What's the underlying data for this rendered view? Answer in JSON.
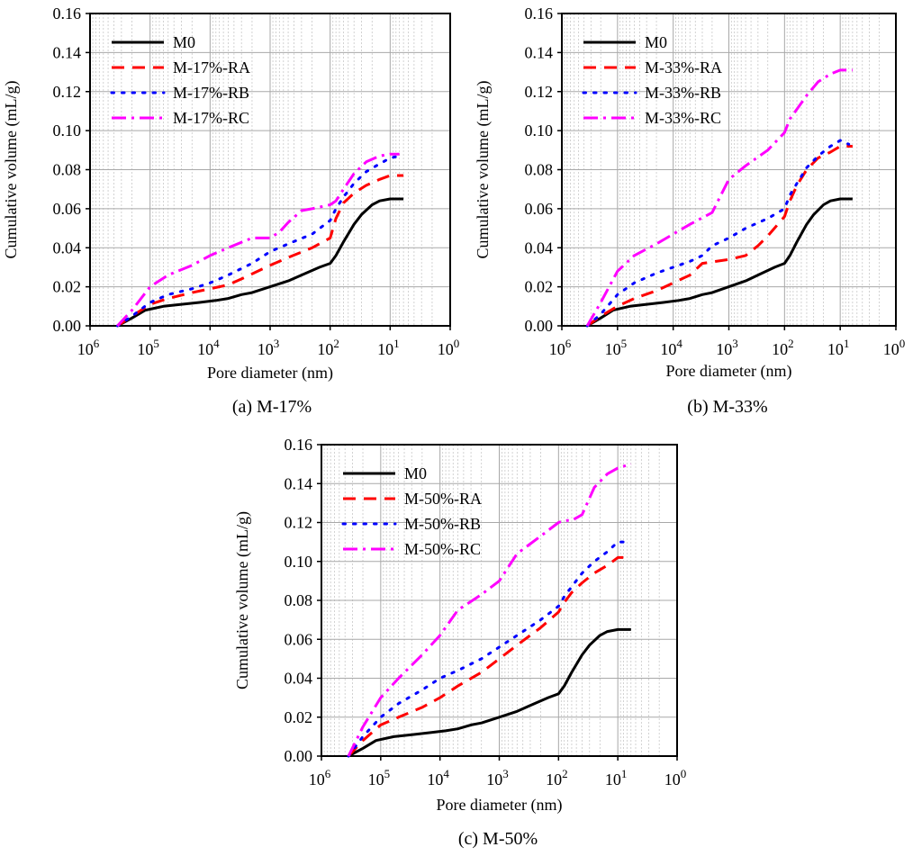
{
  "figure": {
    "panels_count": 3
  },
  "chart_data": [
    {
      "type": "line",
      "caption": "(a) M-17%",
      "xlabel": "Pore diameter (nm)",
      "ylabel": "Cumulative volume (mL/g)",
      "x_scale": "log",
      "x_reversed": true,
      "xlim": [
        1000000,
        1
      ],
      "ylim": [
        0,
        0.16
      ],
      "x_ticks": [
        {
          "base": "10",
          "exp": "6"
        },
        {
          "base": "10",
          "exp": "5"
        },
        {
          "base": "10",
          "exp": "4"
        },
        {
          "base": "10",
          "exp": "3"
        },
        {
          "base": "10",
          "exp": "2"
        },
        {
          "base": "10",
          "exp": "1"
        },
        {
          "base": "10",
          "exp": "0"
        }
      ],
      "y_ticks": [
        "0.00",
        "0.02",
        "0.04",
        "0.06",
        "0.08",
        "0.10",
        "0.12",
        "0.14",
        "0.16"
      ],
      "grid": true,
      "legend_position": "top-left",
      "series": [
        {
          "name": "M0",
          "color": "#000000",
          "style": "solid",
          "x": [
            350000,
            200000,
            120000,
            60000,
            30000,
            15000,
            8000,
            5000,
            3000,
            2000,
            1000,
            500,
            300,
            150,
            100,
            80,
            60,
            40,
            30,
            20,
            15,
            10,
            6
          ],
          "y": [
            0,
            0.004,
            0.008,
            0.01,
            0.011,
            0.012,
            0.013,
            0.014,
            0.016,
            0.017,
            0.02,
            0.023,
            0.026,
            0.03,
            0.032,
            0.036,
            0.043,
            0.052,
            0.057,
            0.062,
            0.064,
            0.065,
            0.065
          ]
        },
        {
          "name": "M-17%-RA",
          "color": "#ff0000",
          "style": "dashed",
          "x": [
            350000,
            200000,
            100000,
            50000,
            20000,
            10000,
            5000,
            3000,
            1000,
            500,
            200,
            100,
            80,
            60,
            40,
            25,
            15,
            10,
            6
          ],
          "y": [
            0,
            0.005,
            0.011,
            0.014,
            0.017,
            0.019,
            0.021,
            0.024,
            0.031,
            0.035,
            0.04,
            0.045,
            0.055,
            0.063,
            0.068,
            0.072,
            0.075,
            0.077,
            0.077
          ]
        },
        {
          "name": "M-17%-RB",
          "color": "#0000ff",
          "style": "dotted",
          "x": [
            350000,
            200000,
            100000,
            50000,
            20000,
            10000,
            5000,
            2000,
            1000,
            500,
            200,
            100,
            80,
            60,
            40,
            25,
            15,
            10,
            7
          ],
          "y": [
            0,
            0.005,
            0.012,
            0.016,
            0.019,
            0.022,
            0.026,
            0.032,
            0.038,
            0.042,
            0.047,
            0.054,
            0.06,
            0.066,
            0.073,
            0.079,
            0.083,
            0.086,
            0.087
          ]
        },
        {
          "name": "M-17%-RC",
          "color": "#ff00ff",
          "style": "dashdot",
          "x": [
            350000,
            200000,
            100000,
            50000,
            20000,
            10000,
            5000,
            2000,
            1000,
            700,
            500,
            300,
            200,
            100,
            80,
            60,
            40,
            25,
            15,
            10,
            7
          ],
          "y": [
            0,
            0.008,
            0.02,
            0.026,
            0.031,
            0.036,
            0.04,
            0.045,
            0.045,
            0.048,
            0.053,
            0.059,
            0.06,
            0.062,
            0.064,
            0.07,
            0.078,
            0.084,
            0.087,
            0.088,
            0.088
          ]
        }
      ]
    },
    {
      "type": "line",
      "caption": "(b) M-33%",
      "xlabel": "Pore diameter (nm)",
      "ylabel": "Cumulative volume (mL/g)",
      "x_scale": "log",
      "x_reversed": true,
      "xlim": [
        1000000,
        1
      ],
      "ylim": [
        0,
        0.16
      ],
      "x_ticks": [
        {
          "base": "10",
          "exp": "6"
        },
        {
          "base": "10",
          "exp": "5"
        },
        {
          "base": "10",
          "exp": "4"
        },
        {
          "base": "10",
          "exp": "3"
        },
        {
          "base": "10",
          "exp": "2"
        },
        {
          "base": "10",
          "exp": "1"
        },
        {
          "base": "10",
          "exp": "0"
        }
      ],
      "y_ticks": [
        "0.00",
        "0.02",
        "0.04",
        "0.06",
        "0.08",
        "0.10",
        "0.12",
        "0.14",
        "0.16"
      ],
      "grid": true,
      "legend_position": "top-left",
      "series": [
        {
          "name": "M0",
          "color": "#000000",
          "style": "solid",
          "x": [
            350000,
            200000,
            120000,
            60000,
            30000,
            15000,
            8000,
            5000,
            3000,
            2000,
            1000,
            500,
            300,
            150,
            100,
            80,
            60,
            40,
            30,
            20,
            15,
            10,
            6
          ],
          "y": [
            0,
            0.004,
            0.008,
            0.01,
            0.011,
            0.012,
            0.013,
            0.014,
            0.016,
            0.017,
            0.02,
            0.023,
            0.026,
            0.03,
            0.032,
            0.036,
            0.043,
            0.052,
            0.057,
            0.062,
            0.064,
            0.065,
            0.065
          ]
        },
        {
          "name": "M-33%-RA",
          "color": "#ff0000",
          "style": "dashed",
          "x": [
            350000,
            200000,
            100000,
            50000,
            20000,
            10000,
            5000,
            3000,
            1000,
            500,
            300,
            200,
            100,
            80,
            60,
            40,
            25,
            15,
            10,
            6
          ],
          "y": [
            0,
            0.005,
            0.01,
            0.014,
            0.018,
            0.022,
            0.026,
            0.032,
            0.034,
            0.036,
            0.041,
            0.046,
            0.056,
            0.064,
            0.072,
            0.08,
            0.086,
            0.089,
            0.092,
            0.092
          ]
        },
        {
          "name": "M-33%-RB",
          "color": "#0000ff",
          "style": "dotted",
          "x": [
            350000,
            200000,
            100000,
            50000,
            20000,
            10000,
            5000,
            3000,
            2000,
            1000,
            500,
            200,
            100,
            80,
            60,
            40,
            25,
            15,
            10,
            7
          ],
          "y": [
            0,
            0.006,
            0.016,
            0.022,
            0.027,
            0.03,
            0.033,
            0.036,
            0.041,
            0.045,
            0.05,
            0.055,
            0.06,
            0.067,
            0.073,
            0.081,
            0.087,
            0.092,
            0.095,
            0.093
          ]
        },
        {
          "name": "M-33%-RC",
          "color": "#ff00ff",
          "style": "dashdot",
          "x": [
            350000,
            200000,
            100000,
            50000,
            20000,
            10000,
            5000,
            2000,
            1000,
            500,
            200,
            100,
            80,
            60,
            40,
            25,
            15,
            10,
            6
          ],
          "y": [
            0,
            0.012,
            0.028,
            0.036,
            0.042,
            0.047,
            0.052,
            0.058,
            0.075,
            0.082,
            0.09,
            0.099,
            0.106,
            0.111,
            0.118,
            0.125,
            0.129,
            0.131,
            0.131
          ]
        }
      ]
    },
    {
      "type": "line",
      "caption": "(c) M-50%",
      "xlabel": "Pore diameter (nm)",
      "ylabel": "Cumulative volume (mL/g)",
      "x_scale": "log",
      "x_reversed": true,
      "xlim": [
        1000000,
        1
      ],
      "ylim": [
        0,
        0.16
      ],
      "x_ticks": [
        {
          "base": "10",
          "exp": "6"
        },
        {
          "base": "10",
          "exp": "5"
        },
        {
          "base": "10",
          "exp": "4"
        },
        {
          "base": "10",
          "exp": "3"
        },
        {
          "base": "10",
          "exp": "2"
        },
        {
          "base": "10",
          "exp": "1"
        },
        {
          "base": "10",
          "exp": "0"
        }
      ],
      "y_ticks": [
        "0.00",
        "0.02",
        "0.04",
        "0.06",
        "0.08",
        "0.10",
        "0.12",
        "0.14",
        "0.16"
      ],
      "grid": true,
      "legend_position": "top-left",
      "series": [
        {
          "name": "M0",
          "color": "#000000",
          "style": "solid",
          "x": [
            350000,
            200000,
            120000,
            60000,
            30000,
            15000,
            8000,
            5000,
            3000,
            2000,
            1000,
            500,
            300,
            150,
            100,
            80,
            60,
            40,
            30,
            20,
            15,
            10,
            6
          ],
          "y": [
            0,
            0.004,
            0.008,
            0.01,
            0.011,
            0.012,
            0.013,
            0.014,
            0.016,
            0.017,
            0.02,
            0.023,
            0.026,
            0.03,
            0.032,
            0.036,
            0.043,
            0.052,
            0.057,
            0.062,
            0.064,
            0.065,
            0.065
          ]
        },
        {
          "name": "M-50%-RA",
          "color": "#ff0000",
          "style": "dashed",
          "x": [
            350000,
            200000,
            100000,
            50000,
            20000,
            10000,
            5000,
            2000,
            1000,
            500,
            200,
            100,
            80,
            60,
            40,
            25,
            15,
            10,
            6
          ],
          "y": [
            0,
            0.008,
            0.016,
            0.02,
            0.025,
            0.03,
            0.036,
            0.043,
            0.05,
            0.057,
            0.066,
            0.074,
            0.079,
            0.084,
            0.089,
            0.094,
            0.098,
            0.102,
            0.102
          ]
        },
        {
          "name": "M-50%-RB",
          "color": "#0000ff",
          "style": "dotted",
          "x": [
            350000,
            200000,
            100000,
            50000,
            20000,
            10000,
            5000,
            2000,
            1000,
            500,
            200,
            100,
            80,
            60,
            40,
            25,
            15,
            10,
            7
          ],
          "y": [
            0,
            0.01,
            0.02,
            0.027,
            0.034,
            0.04,
            0.044,
            0.05,
            0.056,
            0.062,
            0.07,
            0.077,
            0.082,
            0.087,
            0.094,
            0.1,
            0.105,
            0.11,
            0.11
          ]
        },
        {
          "name": "M-50%-RC",
          "color": "#ff00ff",
          "style": "dashdot",
          "x": [
            350000,
            200000,
            100000,
            50000,
            20000,
            10000,
            5000,
            2000,
            1000,
            500,
            200,
            100,
            80,
            60,
            40,
            25,
            15,
            10,
            6
          ],
          "y": [
            0,
            0.015,
            0.03,
            0.04,
            0.052,
            0.062,
            0.075,
            0.083,
            0.09,
            0.104,
            0.113,
            0.12,
            0.121,
            0.121,
            0.124,
            0.138,
            0.145,
            0.148,
            0.15
          ]
        }
      ]
    }
  ]
}
